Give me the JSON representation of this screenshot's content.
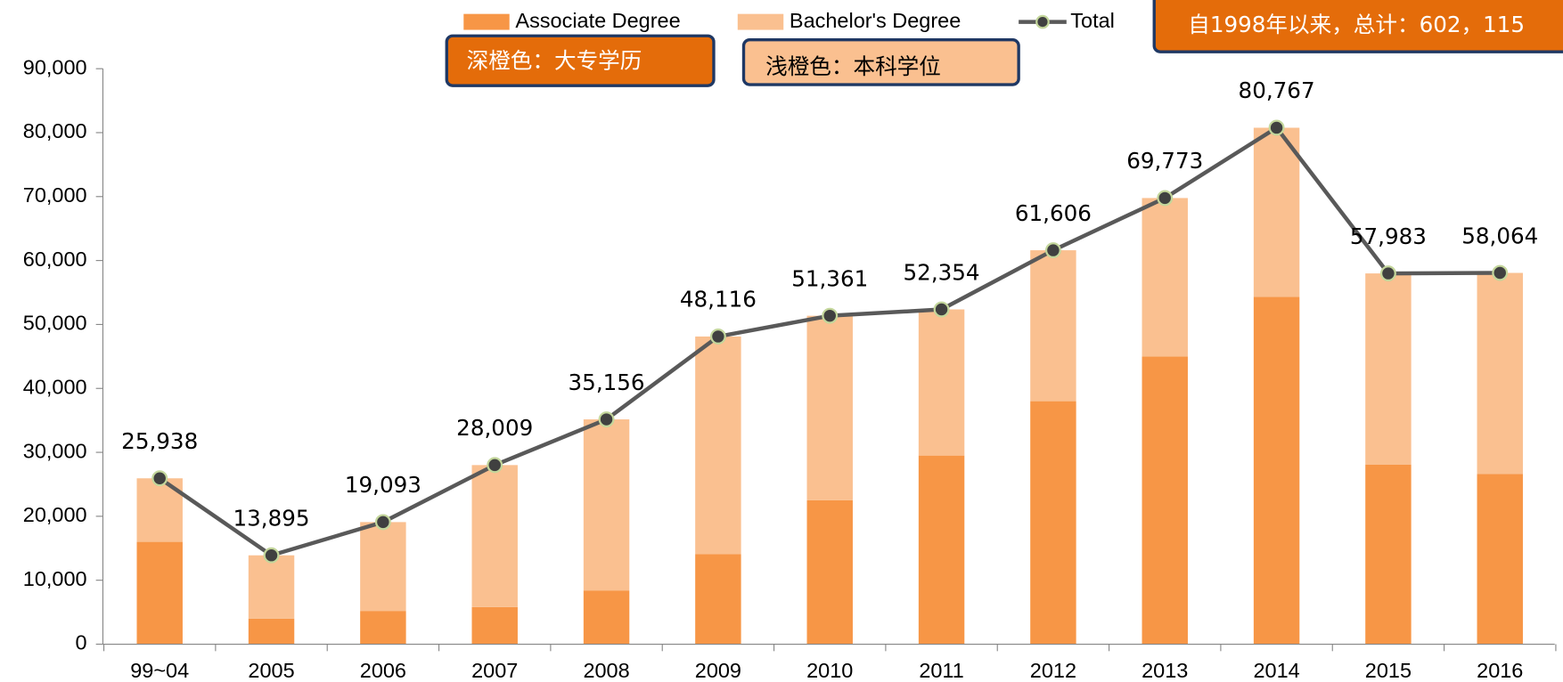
{
  "chart_data": {
    "type": "bar",
    "categories": [
      "99~04",
      "2005",
      "2006",
      "2007",
      "2008",
      "2009",
      "2010",
      "2011",
      "2012",
      "2013",
      "2014",
      "2015",
      "2016"
    ],
    "series": [
      {
        "name": "Associate Degree",
        "color": "#f79646",
        "values": [
          16000,
          4000,
          5200,
          5800,
          8400,
          14100,
          22500,
          29500,
          38000,
          45000,
          54300,
          28100,
          26600
        ]
      },
      {
        "name": "Bachelor's Degree",
        "color": "#fac090",
        "values": [
          9938,
          9895,
          13893,
          22209,
          26756,
          34016,
          28861,
          22854,
          23606,
          24773,
          26467,
          29883,
          31464
        ]
      },
      {
        "name": "Total",
        "type": "line",
        "color": "#595959",
        "marker_color": "#404040",
        "marker_edge": "#c3d69b",
        "values": [
          25938,
          13895,
          19093,
          28009,
          35156,
          48116,
          51361,
          52354,
          61606,
          69773,
          80767,
          57983,
          58064
        ],
        "value_labels": [
          "25,938",
          "13,895",
          "19,093",
          "28,009",
          "35,156",
          "48,116",
          "51,361",
          "52,354",
          "61,606",
          "69,773",
          "80,767",
          "57,983",
          "58,064"
        ]
      }
    ],
    "ylim": [
      0,
      90000
    ],
    "yticks": [
      0,
      {
        "value": 10000,
        "label": "10,000"
      },
      {
        "value": 20000,
        "label": "20,000"
      },
      {
        "value": 30000,
        "label": "30,000"
      },
      {
        "value": 40000,
        "label": "40,000"
      },
      {
        "value": 50000,
        "label": "50,000"
      },
      {
        "value": 60000,
        "label": "60,000"
      },
      {
        "value": 70000,
        "label": "70,000"
      },
      {
        "value": 80000,
        "label": "80,000"
      },
      {
        "value": 90000,
        "label": "90,000"
      }
    ],
    "legend": "top",
    "annotations": [
      "深橙色：大专学历",
      "浅橙色：本科学位",
      "自1998年以来，总计：602，115"
    ]
  }
}
